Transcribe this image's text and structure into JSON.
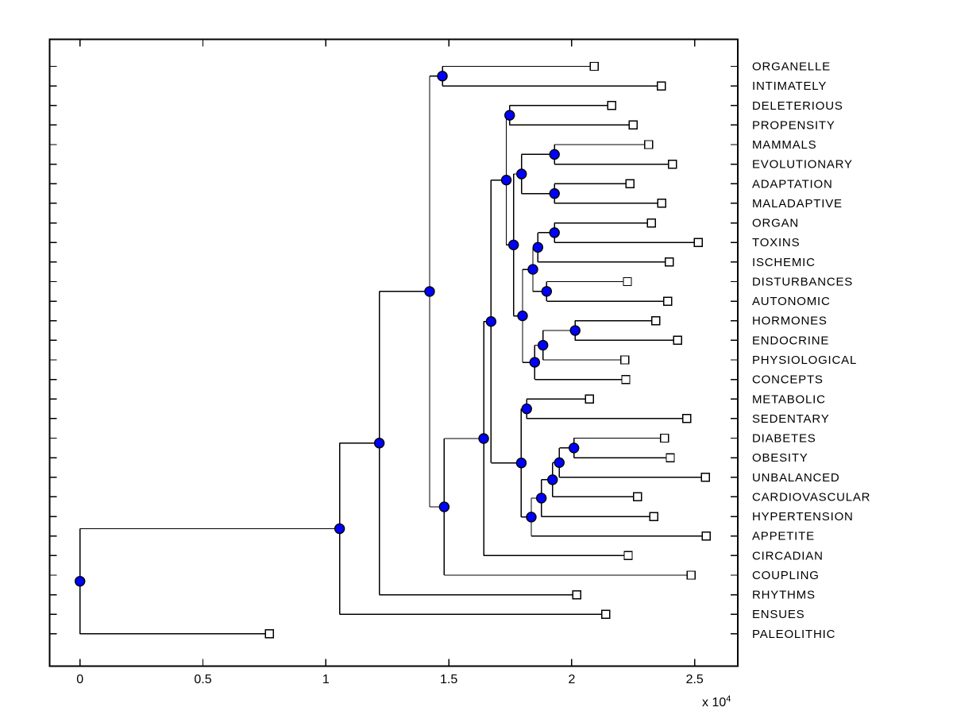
{
  "figure": {
    "background": "#ffffff",
    "line_color": "#000000",
    "node_dot_color": "#0000ff",
    "node_dot_edge": "#000000",
    "leaf_marker_fill": "#ffffff",
    "leaf_marker_edge": "#000000",
    "text_color": "#000000"
  },
  "chart_data": {
    "type": "dendrogram",
    "orientation": "horizontal-left-root",
    "title": "",
    "xlabel": "",
    "ylabel": "",
    "grid": false,
    "axis": {
      "x_ticks": [
        0,
        5000,
        10000,
        15000,
        20000,
        25000
      ],
      "x_tick_labels": [
        "0",
        "0.5",
        "1",
        "1.5",
        "2",
        "2.5"
      ],
      "multiplier_base": "x 10",
      "multiplier_exp": "4",
      "x_range": [
        -1230,
        26760
      ],
      "y_ticks_per_leaf_row": true
    },
    "leaves": [
      {
        "label": "ORGANELLE",
        "tip": 20910
      },
      {
        "label": "INTIMATELY",
        "tip": 23645
      },
      {
        "label": "DELETERIOUS",
        "tip": 21620
      },
      {
        "label": "PROPENSITY",
        "tip": 22500
      },
      {
        "label": "MAMMALS",
        "tip": 23125
      },
      {
        "label": "EVOLUTIONARY",
        "tip": 24095
      },
      {
        "label": "ADAPTATION",
        "tip": 22370
      },
      {
        "label": "MALADAPTIVE",
        "tip": 23665
      },
      {
        "label": "ORGAN",
        "tip": 23235
      },
      {
        "label": "TOXINS",
        "tip": 25150
      },
      {
        "label": "ISCHEMIC",
        "tip": 23965
      },
      {
        "label": "DISTURBANCES",
        "tip": 22265
      },
      {
        "label": "AUTONOMIC",
        "tip": 23900
      },
      {
        "label": "HORMONES",
        "tip": 23425
      },
      {
        "label": "ENDOCRINE",
        "tip": 24310
      },
      {
        "label": "PHYSIOLOGICAL",
        "tip": 22160
      },
      {
        "label": "CONCEPTS",
        "tip": 22200
      },
      {
        "label": "METABOLIC",
        "tip": 20725
      },
      {
        "label": "SEDENTARY",
        "tip": 24685
      },
      {
        "label": "DIABETES",
        "tip": 23775
      },
      {
        "label": "OBESITY",
        "tip": 24010
      },
      {
        "label": "UNBALANCED",
        "tip": 25440
      },
      {
        "label": "CARDIOVASCULAR",
        "tip": 22675
      },
      {
        "label": "HYPERTENSION",
        "tip": 23340
      },
      {
        "label": "APPETITE",
        "tip": 25470
      },
      {
        "label": "CIRCADIAN",
        "tip": 22295
      },
      {
        "label": "COUPLING",
        "tip": 24850
      },
      {
        "label": "RHYTHMS",
        "tip": 20200
      },
      {
        "label": "ENSUES",
        "tip": 21385
      },
      {
        "label": "PALEOLITHIC",
        "tip": 7705
      }
    ],
    "tree": {
      "x": 0,
      "children": [
        {
          "x": 10560,
          "children": [
            {
              "x": 12175,
              "children": [
                {
                  "x": 14220,
                  "children": [
                    {
                      "x": 14740,
                      "children": [
                        {
                          "leaf": "ORGANELLE"
                        },
                        {
                          "leaf": "INTIMATELY"
                        }
                      ]
                    },
                    {
                      "x": 14815,
                      "children": [
                        {
                          "x": 16420,
                          "children": [
                            {
                              "x": 16720,
                              "children": [
                                {
                                  "x": 17340,
                                  "children": [
                                    {
                                      "x": 17475,
                                      "children": [
                                        {
                                          "leaf": "DELETERIOUS"
                                        },
                                        {
                                          "leaf": "PROPENSITY"
                                        }
                                      ]
                                    },
                                    {
                                      "x": 17635,
                                      "children": [
                                        {
                                          "x": 17960,
                                          "children": [
                                            {
                                              "x": 19300,
                                              "children": [
                                                {
                                                  "leaf": "MAMMALS"
                                                },
                                                {
                                                  "leaf": "EVOLUTIONARY"
                                                }
                                              ]
                                            },
                                            {
                                              "x": 19300,
                                              "children": [
                                                {
                                                  "leaf": "ADAPTATION"
                                                },
                                                {
                                                  "leaf": "MALADAPTIVE"
                                                }
                                              ]
                                            }
                                          ]
                                        },
                                        {
                                          "x": 18000,
                                          "children": [
                                            {
                                              "x": 18420,
                                              "children": [
                                                {
                                                  "x": 18625,
                                                  "children": [
                                                    {
                                                      "x": 19300,
                                                      "children": [
                                                        {
                                                          "leaf": "ORGAN"
                                                        },
                                                        {
                                                          "leaf": "TOXINS"
                                                        }
                                                      ]
                                                    },
                                                    {
                                                      "leaf": "ISCHEMIC"
                                                    }
                                                  ]
                                                },
                                                {
                                                  "x": 18980,
                                                  "children": [
                                                    {
                                                      "leaf": "DISTURBANCES"
                                                    },
                                                    {
                                                      "leaf": "AUTONOMIC"
                                                    }
                                                  ]
                                                }
                                              ]
                                            },
                                            {
                                              "x": 18495,
                                              "children": [
                                                {
                                                  "x": 18830,
                                                  "children": [
                                                    {
                                                      "x": 20140,
                                                      "children": [
                                                        {
                                                          "leaf": "HORMONES"
                                                        },
                                                        {
                                                          "leaf": "ENDOCRINE"
                                                        }
                                                      ]
                                                    },
                                                    {
                                                      "leaf": "PHYSIOLOGICAL"
                                                    }
                                                  ]
                                                },
                                                {
                                                  "leaf": "CONCEPTS"
                                                }
                                              ]
                                            }
                                          ]
                                        }
                                      ]
                                    }
                                  ]
                                },
                                {
                                  "x": 17950,
                                  "children": [
                                    {
                                      "x": 18170,
                                      "children": [
                                        {
                                          "leaf": "METABOLIC"
                                        },
                                        {
                                          "leaf": "SEDENTARY"
                                        }
                                      ]
                                    },
                                    {
                                      "x": 18355,
                                      "children": [
                                        {
                                          "x": 18765,
                                          "children": [
                                            {
                                              "x": 19220,
                                              "children": [
                                                {
                                                  "x": 19495,
                                                  "children": [
                                                    {
                                                      "x": 20090,
                                                      "children": [
                                                        {
                                                          "leaf": "DIABETES"
                                                        },
                                                        {
                                                          "leaf": "OBESITY"
                                                        }
                                                      ]
                                                    },
                                                    {
                                                      "leaf": "UNBALANCED"
                                                    }
                                                  ]
                                                },
                                                {
                                                  "leaf": "CARDIOVASCULAR"
                                                }
                                              ]
                                            },
                                            {
                                              "leaf": "HYPERTENSION"
                                            }
                                          ]
                                        },
                                        {
                                          "leaf": "APPETITE"
                                        }
                                      ]
                                    }
                                  ]
                                }
                              ]
                            },
                            {
                              "leaf": "CIRCADIAN"
                            }
                          ]
                        },
                        {
                          "leaf": "COUPLING"
                        }
                      ]
                    }
                  ]
                },
                {
                  "leaf": "RHYTHMS"
                }
              ]
            },
            {
              "leaf": "ENSUES"
            }
          ]
        },
        {
          "leaf": "PALEOLITHIC"
        }
      ]
    }
  }
}
